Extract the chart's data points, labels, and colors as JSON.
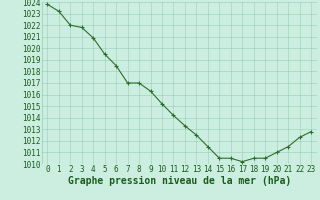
{
  "x": [
    0,
    1,
    2,
    3,
    4,
    5,
    6,
    7,
    8,
    9,
    10,
    11,
    12,
    13,
    14,
    15,
    16,
    17,
    18,
    19,
    20,
    21,
    22,
    23
  ],
  "y": [
    1023.8,
    1023.2,
    1022.0,
    1021.8,
    1020.9,
    1019.5,
    1018.5,
    1017.0,
    1017.0,
    1016.3,
    1015.2,
    1014.2,
    1013.3,
    1012.5,
    1011.5,
    1010.5,
    1010.5,
    1010.2,
    1010.5,
    1010.5,
    1011.0,
    1011.5,
    1012.3,
    1012.8
  ],
  "line_color": "#2d6e2d",
  "marker": "+",
  "marker_color": "#2d6e2d",
  "bg_color": "#cceee0",
  "grid_color": "#99ccb8",
  "xlabel": "Graphe pression niveau de la mer (hPa)",
  "xlabel_color": "#1a5c1a",
  "tick_color": "#1a5c1a",
  "ylim": [
    1010,
    1024
  ],
  "xlim_min": -0.5,
  "xlim_max": 23.5,
  "yticks": [
    1010,
    1011,
    1012,
    1013,
    1014,
    1015,
    1016,
    1017,
    1018,
    1019,
    1020,
    1021,
    1022,
    1023,
    1024
  ],
  "xticks": [
    0,
    1,
    2,
    3,
    4,
    5,
    6,
    7,
    8,
    9,
    10,
    11,
    12,
    13,
    14,
    15,
    16,
    17,
    18,
    19,
    20,
    21,
    22,
    23
  ],
  "tick_fontsize": 5.5,
  "xlabel_fontsize": 7,
  "linewidth": 0.8,
  "markersize": 3.5,
  "marker_ew": 0.8
}
